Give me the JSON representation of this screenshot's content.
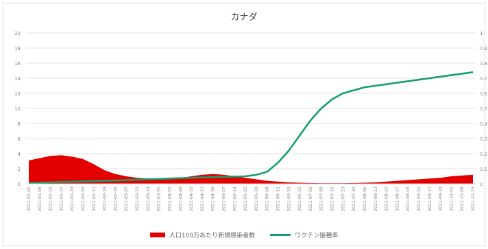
{
  "chart_data": {
    "type": "area",
    "title": "カナダ",
    "y_left": {
      "min": 0,
      "max": 20,
      "ticks": [
        0,
        2,
        4,
        6,
        8,
        10,
        12,
        14,
        16,
        18,
        20
      ]
    },
    "y_right": {
      "min": 0,
      "max": 1,
      "ticks": [
        "0",
        "0.1",
        "0.2",
        "0.3",
        "0.4",
        "0.5",
        "0.6",
        "0.7",
        "0.8",
        "0.9",
        "1"
      ]
    },
    "grid": true,
    "legend_position": "bottom",
    "x_tick_labels": [
      "2021-01-01",
      "2021-01-08",
      "2021-01-15",
      "2021-01-22",
      "2021-01-29",
      "2021-02-05",
      "2021-02-12",
      "2021-02-19",
      "2021-02-26",
      "2021-03-05",
      "2021-03-12",
      "2021-03-19",
      "2021-03-26",
      "2021-04-02",
      "2021-04-09",
      "2021-04-16",
      "2021-04-23",
      "2021-04-30",
      "2021-05-07",
      "2021-05-14",
      "2021-05-21",
      "2021-05-28",
      "2021-06-04",
      "2021-06-11",
      "2021-06-18",
      "2021-06-25",
      "2021-07-02",
      "2021-07-09",
      "2021-07-16",
      "2021-07-23",
      "2021-07-30",
      "2021-08-06",
      "2021-08-13",
      "2021-08-20",
      "2021-08-27",
      "2021-09-03",
      "2021-09-10",
      "2021-09-17",
      "2021-09-24",
      "2021-10-01",
      "2021-10-08",
      "2021-10-15"
    ],
    "series": [
      {
        "name": "人口100万あたり新規感染者数",
        "type": "area",
        "axis": "left",
        "color": "#e50000",
        "values": [
          3.1,
          3.4,
          3.7,
          3.8,
          3.6,
          3.3,
          2.6,
          1.8,
          1.3,
          1.0,
          0.8,
          0.7,
          0.7,
          0.7,
          0.8,
          1.0,
          1.2,
          1.3,
          1.2,
          1.0,
          0.8,
          0.6,
          0.4,
          0.3,
          0.2,
          0.15,
          0.1,
          0.08,
          0.08,
          0.08,
          0.1,
          0.15,
          0.2,
          0.3,
          0.4,
          0.5,
          0.6,
          0.7,
          0.8,
          1.0,
          1.1,
          1.2
        ]
      },
      {
        "name": "ワクチン接種率",
        "type": "line",
        "axis": "right",
        "color": "#15a06b",
        "values": [
          0.005,
          0.008,
          0.01,
          0.012,
          0.014,
          0.016,
          0.018,
          0.02,
          0.022,
          0.025,
          0.027,
          0.03,
          0.032,
          0.035,
          0.038,
          0.04,
          0.042,
          0.044,
          0.046,
          0.048,
          0.05,
          0.06,
          0.08,
          0.14,
          0.22,
          0.32,
          0.42,
          0.5,
          0.56,
          0.6,
          0.62,
          0.64,
          0.65,
          0.66,
          0.67,
          0.68,
          0.69,
          0.7,
          0.71,
          0.72,
          0.73,
          0.74
        ]
      }
    ]
  }
}
